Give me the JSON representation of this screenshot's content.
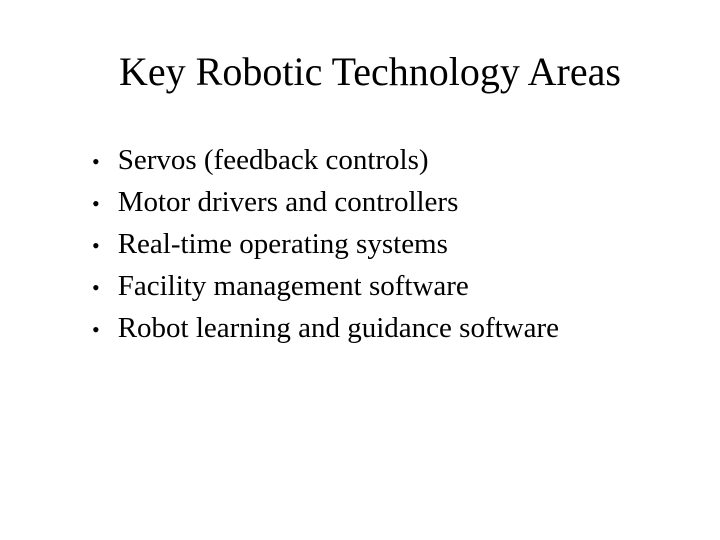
{
  "slide": {
    "title": "Key Robotic Technology Areas",
    "bullets": [
      {
        "text": "Servos (feedback controls)"
      },
      {
        "text": "Motor drivers and controllers"
      },
      {
        "text": "Real-time operating systems"
      },
      {
        "text": "Facility management software"
      },
      {
        "text": "Robot learning and guidance software"
      }
    ],
    "style": {
      "background_color": "#ffffff",
      "text_color": "#000000",
      "title_fontsize": 40,
      "bullet_fontsize": 29,
      "font_family": "Times New Roman"
    }
  }
}
